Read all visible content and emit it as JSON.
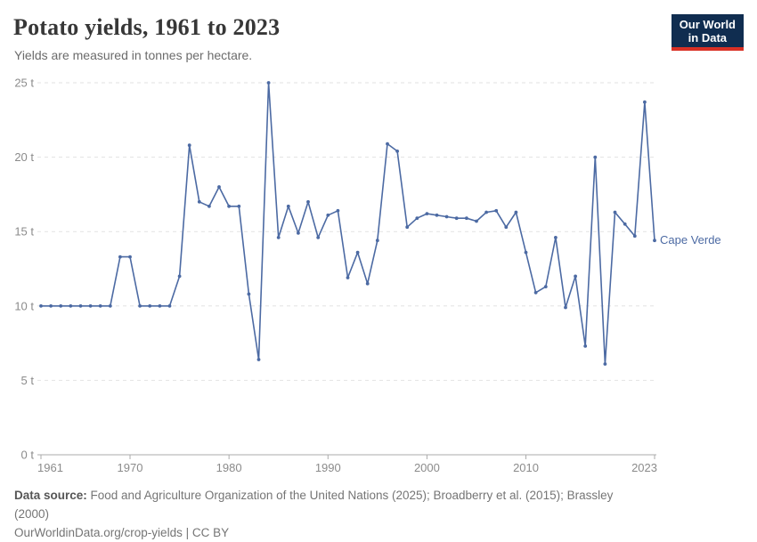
{
  "header": {
    "title": "Potato yields, 1961 to 2023",
    "subtitle": "Yields are measured in tonnes per hectare."
  },
  "logo": {
    "line1": "Our World",
    "line2": "in Data",
    "bg_color": "#102d50",
    "bar_color": "#d93025"
  },
  "chart_data": {
    "type": "line",
    "title": "Potato yields, 1961 to 2023",
    "ylabel": "tonnes per hectare",
    "unit": "t",
    "ylim": [
      0,
      25
    ],
    "grid": "horizontal-dashed",
    "legend_position": "end-of-line-label",
    "x": [
      1961,
      1962,
      1963,
      1964,
      1965,
      1966,
      1967,
      1968,
      1969,
      1970,
      1971,
      1972,
      1973,
      1974,
      1975,
      1976,
      1977,
      1978,
      1979,
      1980,
      1981,
      1982,
      1983,
      1984,
      1985,
      1986,
      1987,
      1988,
      1989,
      1990,
      1991,
      1992,
      1993,
      1994,
      1995,
      1996,
      1997,
      1998,
      1999,
      2000,
      2001,
      2002,
      2003,
      2004,
      2005,
      2006,
      2007,
      2008,
      2009,
      2010,
      2011,
      2012,
      2013,
      2014,
      2015,
      2016,
      2017,
      2018,
      2019,
      2020,
      2021,
      2022,
      2023
    ],
    "series": [
      {
        "name": "Cape Verde",
        "color": "#4c6aa3",
        "values": [
          10,
          10,
          10,
          10,
          10,
          10,
          10,
          10,
          13.3,
          13.3,
          10,
          10,
          10,
          10,
          12,
          20.8,
          17,
          16.7,
          18,
          16.7,
          16.7,
          10.8,
          6.4,
          25,
          14.6,
          16.7,
          14.9,
          17,
          14.6,
          16.1,
          16.4,
          11.9,
          13.6,
          11.5,
          14.4,
          20.9,
          20.4,
          15.3,
          15.9,
          16.2,
          16.1,
          16,
          15.9,
          15.9,
          15.7,
          16.3,
          16.4,
          15.3,
          16.3,
          13.6,
          10.9,
          11.3,
          14.6,
          9.9,
          12,
          7.3,
          20,
          6.1,
          16.3,
          15.5,
          14.7,
          23.7,
          14.4
        ]
      }
    ],
    "y_ticks": [
      {
        "value": 0,
        "label": "0 t"
      },
      {
        "value": 5,
        "label": "5 t"
      },
      {
        "value": 10,
        "label": "10 t"
      },
      {
        "value": 15,
        "label": "15 t"
      },
      {
        "value": 20,
        "label": "20 t"
      },
      {
        "value": 25,
        "label": "25 t"
      }
    ],
    "x_ticks": [
      {
        "value": 1961,
        "label": "1961"
      },
      {
        "value": 1970,
        "label": "1970"
      },
      {
        "value": 1980,
        "label": "1980"
      },
      {
        "value": 1990,
        "label": "1990"
      },
      {
        "value": 2000,
        "label": "2000"
      },
      {
        "value": 2010,
        "label": "2010"
      },
      {
        "value": 2023,
        "label": "2023"
      }
    ]
  },
  "footer": {
    "source_label": "Data source:",
    "source_text": " Food and Agriculture Organization of the United Nations (2025); Broadberry et al. (2015); Brassley (2000)",
    "license_line": "OurWorldinData.org/crop-yields | CC BY"
  }
}
